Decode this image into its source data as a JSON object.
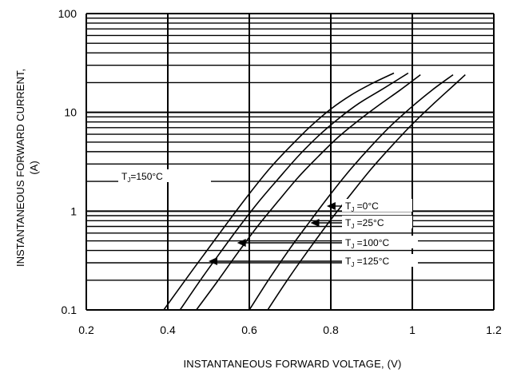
{
  "chart_data": {
    "type": "line",
    "title": "",
    "xlabel": "INSTANTANEOUS FORWARD VOLTAGE, (V)",
    "ylabel_line1": "INSTANTANEOUS FORWARD CURRENT,",
    "ylabel_line2": "(A)",
    "xlim": [
      0.2,
      1.2
    ],
    "ylim": [
      0.1,
      100
    ],
    "y_scale": "log",
    "grid": true,
    "x_ticks": [
      "0.2",
      "0.4",
      "0.6",
      "0.8",
      "1",
      "1.2"
    ],
    "y_ticks": [
      "0.1",
      "1",
      "10",
      "100"
    ],
    "series": [
      {
        "name": "TJ=150°C",
        "label": "T",
        "sub": "J",
        "suffix": "=150°C",
        "x": [
          0.39,
          0.45,
          0.5,
          0.55,
          0.6,
          0.65,
          0.7,
          0.75,
          0.8,
          0.85,
          0.9,
          0.955
        ],
        "y": [
          0.1,
          0.22,
          0.42,
          0.8,
          1.5,
          2.7,
          4.5,
          7.2,
          10.8,
          15.0,
          19.5,
          25.0
        ]
      },
      {
        "name": "TJ=125°C",
        "label": "T",
        "sub": "J",
        "suffix": " =125°C",
        "x": [
          0.43,
          0.48,
          0.52,
          0.57,
          0.62,
          0.67,
          0.72,
          0.77,
          0.82,
          0.87,
          0.93,
          0.99
        ],
        "y": [
          0.1,
          0.2,
          0.34,
          0.65,
          1.2,
          2.1,
          3.6,
          5.8,
          8.7,
          12.4,
          17.5,
          25.0
        ]
      },
      {
        "name": "TJ=100°C",
        "label": "T",
        "sub": "J",
        "suffix": " =100°C",
        "x": [
          0.47,
          0.52,
          0.57,
          0.62,
          0.67,
          0.72,
          0.77,
          0.82,
          0.87,
          0.92,
          0.97,
          1.02
        ],
        "y": [
          0.1,
          0.19,
          0.37,
          0.7,
          1.25,
          2.2,
          3.6,
          5.7,
          8.4,
          12.0,
          16.8,
          24.0
        ]
      },
      {
        "name": "TJ=25°C",
        "label": "T",
        "sub": "J",
        "suffix": " =25°C",
        "x": [
          0.6,
          0.65,
          0.7,
          0.75,
          0.8,
          0.85,
          0.9,
          0.95,
          1.0,
          1.05,
          1.1
        ],
        "y": [
          0.1,
          0.21,
          0.42,
          0.8,
          1.5,
          2.7,
          4.6,
          7.5,
          11.5,
          17.0,
          24.0
        ]
      },
      {
        "name": "TJ=0°C",
        "label": "T",
        "sub": "J",
        "suffix": " =0°C",
        "x": [
          0.645,
          0.7,
          0.75,
          0.8,
          0.85,
          0.9,
          0.95,
          1.0,
          1.05,
          1.1,
          1.13
        ],
        "y": [
          0.1,
          0.22,
          0.43,
          0.82,
          1.5,
          2.7,
          4.6,
          7.6,
          12.0,
          18.5,
          24.0
        ]
      }
    ],
    "annotations": [
      {
        "series": "TJ=0°C",
        "arrow_to": [
          0.79,
          1.15
        ]
      },
      {
        "series": "TJ=25°C",
        "arrow_to": [
          0.75,
          0.74
        ]
      },
      {
        "series": "TJ=100°C",
        "arrow_to": [
          0.57,
          0.48
        ]
      },
      {
        "series": "TJ=125°C",
        "arrow_to": [
          0.5,
          0.36
        ]
      },
      {
        "series": "TJ=150°C"
      }
    ]
  }
}
